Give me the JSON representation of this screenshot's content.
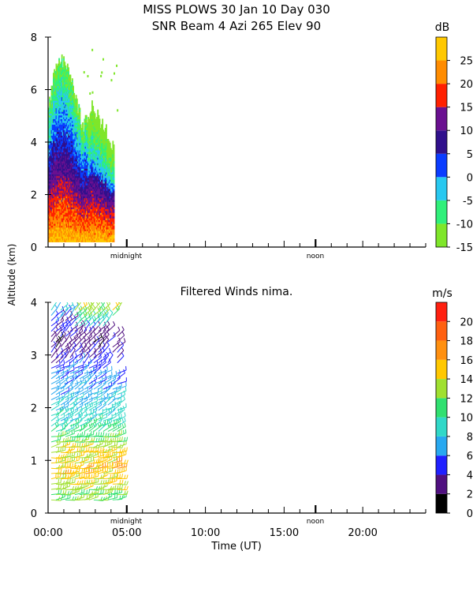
{
  "title_line1": "MISS PLOWS  30 Jan 10 Day 030",
  "title_line2": "SNR Beam 4 Azi 265 Elev 90",
  "ylabel": "Altitude (km)",
  "xlabel": "Time (UT)",
  "marker_midnight": "midnight",
  "marker_noon": "noon",
  "chart_data": [
    {
      "type": "heatmap",
      "title": "",
      "xlabel": "",
      "ylabel": "Altitude (km)",
      "xlim": [
        0,
        24
      ],
      "ylim": [
        0,
        8
      ],
      "yticks": [
        0,
        2,
        4,
        6,
        8
      ],
      "colorbar": {
        "unit": "dB",
        "range": [
          -15,
          30
        ],
        "ticks": [
          -15,
          -10,
          -5,
          0,
          5,
          10,
          15,
          20,
          25
        ],
        "colors": [
          "#7fe62a",
          "#30f07a",
          "#28c8f0",
          "#0a3cff",
          "#30108c",
          "#6a1090",
          "#ff2000",
          "#ff8c00",
          "#ffc800"
        ]
      },
      "data_time_range_hours": [
        0,
        4.2
      ],
      "columns": [
        {
          "t": 0.1,
          "top_km": 5.6
        },
        {
          "t": 0.4,
          "top_km": 6.9
        },
        {
          "t": 0.7,
          "top_km": 7.2
        },
        {
          "t": 1.0,
          "top_km": 7.0
        },
        {
          "t": 1.3,
          "top_km": 6.6
        },
        {
          "t": 1.6,
          "top_km": 6.0
        },
        {
          "t": 1.9,
          "top_km": 5.2
        },
        {
          "t": 2.2,
          "top_km": 4.6
        },
        {
          "t": 2.5,
          "top_km": 5.0
        },
        {
          "t": 2.8,
          "top_km": 5.4
        },
        {
          "t": 3.1,
          "top_km": 5.0
        },
        {
          "t": 3.4,
          "top_km": 4.6
        },
        {
          "t": 3.7,
          "top_km": 4.4
        },
        {
          "t": 4.0,
          "top_km": 3.9
        }
      ]
    },
    {
      "type": "scatter",
      "title": "Filtered Winds nima.",
      "xlabel": "Time (UT)",
      "ylabel": "",
      "xlim": [
        0,
        24
      ],
      "ylim": [
        0,
        4
      ],
      "xticks": [
        "00:00",
        "05:00",
        "10:00",
        "15:00",
        "20:00"
      ],
      "yticks": [
        0,
        1,
        2,
        3,
        4
      ],
      "colorbar": {
        "unit": "m/s",
        "range": [
          0,
          22
        ],
        "ticks": [
          0,
          2,
          4,
          6,
          8,
          10,
          12,
          14,
          16,
          18,
          20
        ],
        "colors": [
          "#000000",
          "#501080",
          "#2020ff",
          "#28a8f0",
          "#30d8c8",
          "#30e070",
          "#a0e030",
          "#ffc800",
          "#ff9010",
          "#ff6010",
          "#ff2010"
        ]
      },
      "data_time_range_hours": [
        0.2,
        4.6
      ],
      "speed_profile": [
        {
          "alt_km": 0.25,
          "speed": 12
        },
        {
          "alt_km": 0.8,
          "speed": 15
        },
        {
          "alt_km": 1.2,
          "speed": 14
        },
        {
          "alt_km": 1.6,
          "speed": 10
        },
        {
          "alt_km": 2.0,
          "speed": 8
        },
        {
          "alt_km": 2.4,
          "speed": 7
        },
        {
          "alt_km": 2.8,
          "speed": 5
        },
        {
          "alt_km": 3.2,
          "speed": 3
        },
        {
          "alt_km": 3.6,
          "speed": 4
        },
        {
          "alt_km": 3.9,
          "speed": 9
        }
      ]
    }
  ]
}
